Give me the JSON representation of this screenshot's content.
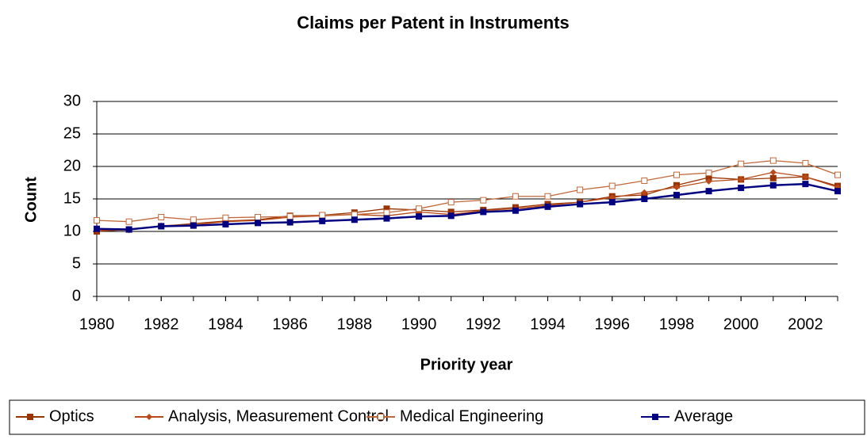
{
  "chart_data": {
    "type": "line",
    "title": "Claims per Patent in Instruments",
    "x_label": "Priority year",
    "y_label": "Count",
    "x": [
      1980,
      1981,
      1982,
      1983,
      1984,
      1985,
      1986,
      1987,
      1988,
      1989,
      1990,
      1991,
      1992,
      1993,
      1994,
      1995,
      1996,
      1997,
      1998,
      1999,
      2000,
      2001,
      2002,
      2003
    ],
    "xlim": [
      1980,
      2003
    ],
    "xticks": [
      1980,
      1982,
      1984,
      1986,
      1988,
      1990,
      1992,
      1994,
      1996,
      1998,
      2000,
      2002
    ],
    "ylim": [
      0,
      30
    ],
    "yticks": [
      0,
      5,
      10,
      15,
      20,
      25,
      30
    ],
    "grid": true,
    "legend": "bottom",
    "series": [
      {
        "name": "Optics",
        "color": "#993300",
        "marker": "square",
        "values": [
          10.0,
          10.3,
          10.8,
          11.2,
          11.6,
          11.8,
          12.4,
          12.5,
          12.9,
          13.5,
          13.3,
          13.0,
          13.3,
          13.7,
          14.2,
          14.5,
          15.4,
          15.6,
          17.1,
          18.3,
          18.0,
          18.2,
          18.4,
          17.0
        ]
      },
      {
        "name": "Analysis, Measurement Control",
        "color": "#b84a1a",
        "marker": "diamond",
        "values": [
          10.2,
          10.2,
          10.9,
          11.0,
          11.5,
          11.7,
          12.2,
          12.4,
          12.6,
          12.4,
          13.0,
          12.6,
          13.2,
          13.5,
          14.0,
          14.5,
          15.2,
          16.0,
          16.8,
          17.7,
          18.0,
          19.1,
          18.4,
          16.8
        ]
      },
      {
        "name": "Medical Engineering",
        "color": "#c0683a",
        "marker": "open-square",
        "values": [
          11.7,
          11.5,
          12.2,
          11.8,
          12.1,
          12.2,
          12.3,
          12.5,
          12.6,
          12.9,
          13.5,
          14.5,
          14.8,
          15.4,
          15.4,
          16.4,
          17.0,
          17.8,
          18.7,
          19.0,
          20.4,
          20.9,
          20.5,
          18.7
        ]
      },
      {
        "name": "Average",
        "color": "#000080",
        "marker": "square",
        "values": [
          10.4,
          10.3,
          10.8,
          10.9,
          11.1,
          11.3,
          11.4,
          11.6,
          11.8,
          12.0,
          12.3,
          12.4,
          13.0,
          13.2,
          13.8,
          14.2,
          14.5,
          15.0,
          15.6,
          16.2,
          16.7,
          17.1,
          17.3,
          16.2
        ]
      }
    ]
  }
}
